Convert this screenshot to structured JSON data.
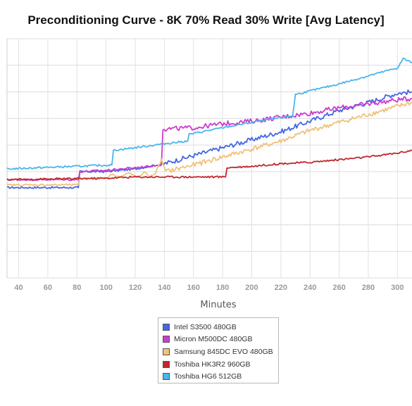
{
  "chart_data": {
    "type": "line",
    "title": "Preconditioning Curve - 8K 70% Read 30% Write [Avg Latency]",
    "xlabel": "Minutes",
    "ylabel": "",
    "x_ticks": [
      40,
      60,
      80,
      100,
      120,
      140,
      160,
      180,
      200,
      220,
      240,
      260,
      280,
      300
    ],
    "xlim": [
      32,
      310
    ],
    "ylim": [
      0,
      9
    ],
    "grid": true,
    "legend_position": "bottom-center",
    "series": [
      {
        "name": "Intel S3500 480GB",
        "color": "#4466e6",
        "x": [
          32,
          81,
          82,
          100,
          120,
          140,
          160,
          180,
          200,
          220,
          240,
          260,
          280,
          300,
          310
        ],
        "y": [
          3.4,
          3.4,
          4.0,
          4.0,
          4.1,
          4.3,
          4.6,
          4.9,
          5.2,
          5.5,
          5.9,
          6.3,
          6.6,
          6.95,
          7.0
        ]
      },
      {
        "name": "Micron M500DC 480GB",
        "color": "#cc3ccc",
        "x": [
          32,
          81,
          82,
          100,
          120,
          138,
          139,
          160,
          180,
          200,
          220,
          240,
          260,
          280,
          300,
          310
        ],
        "y": [
          3.7,
          3.7,
          4.0,
          4.05,
          4.15,
          4.25,
          5.6,
          5.65,
          5.8,
          5.9,
          6.05,
          6.2,
          6.4,
          6.55,
          6.7,
          6.75
        ]
      },
      {
        "name": "Samsung 845DC EVO 480GB",
        "color": "#f0c27a",
        "x": [
          32,
          81,
          82,
          100,
          104,
          110,
          116,
          122,
          126,
          130,
          134,
          138,
          141,
          160,
          180,
          200,
          220,
          240,
          260,
          280,
          300,
          310
        ],
        "y": [
          3.5,
          3.5,
          3.75,
          3.75,
          3.9,
          3.8,
          3.95,
          3.75,
          4.0,
          3.8,
          3.95,
          4.45,
          4.0,
          4.25,
          4.55,
          4.85,
          5.15,
          5.55,
          5.85,
          6.15,
          6.45,
          6.6
        ]
      },
      {
        "name": "Toshiba HK3R2 960GB",
        "color": "#c0282e",
        "x": [
          32,
          100,
          120,
          140,
          160,
          182,
          183,
          200,
          220,
          240,
          260,
          280,
          300,
          310
        ],
        "y": [
          3.7,
          3.75,
          3.8,
          3.8,
          3.8,
          3.8,
          4.15,
          4.2,
          4.3,
          4.35,
          4.45,
          4.55,
          4.7,
          4.8
        ]
      },
      {
        "name": "Toshiba HG6 512GB",
        "color": "#4ab6ec",
        "x": [
          32,
          104,
          105,
          120,
          140,
          156,
          157,
          180,
          200,
          228,
          230,
          260,
          280,
          300,
          304,
          310
        ],
        "y": [
          4.1,
          4.25,
          4.8,
          4.9,
          5.05,
          5.15,
          5.4,
          5.65,
          5.85,
          6.1,
          6.9,
          7.3,
          7.6,
          7.9,
          8.25,
          8.1
        ]
      }
    ]
  }
}
